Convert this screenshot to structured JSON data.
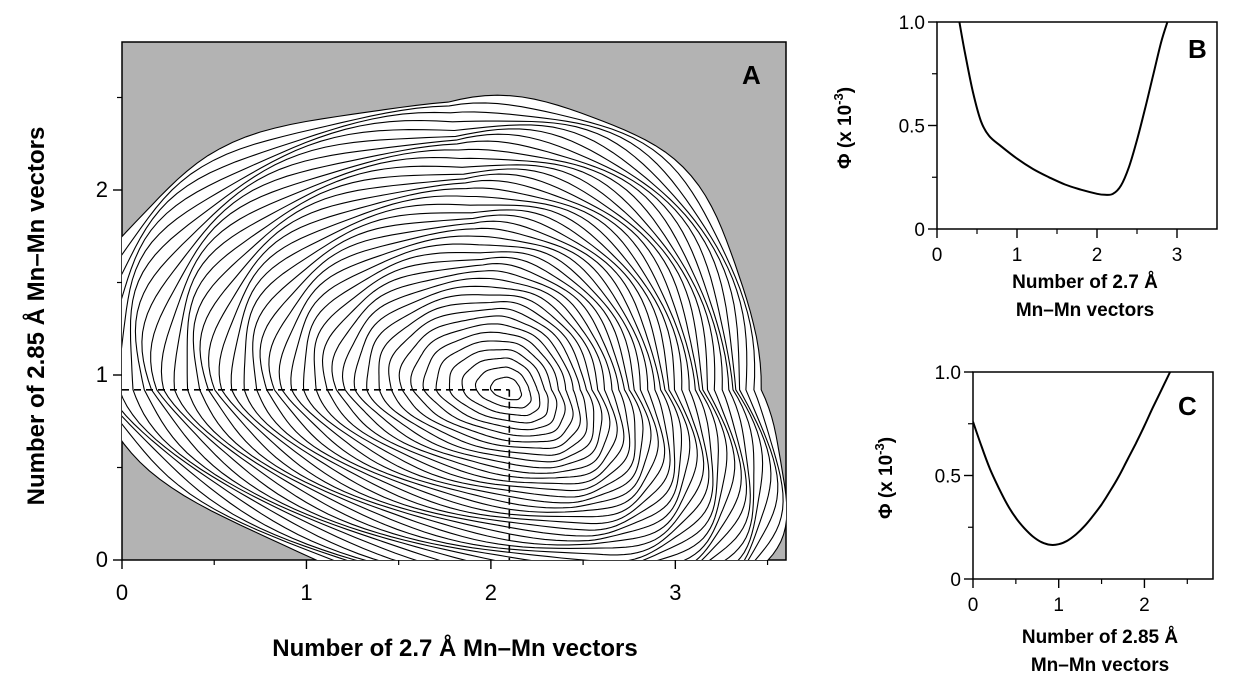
{
  "chart_data": [
    {
      "panel": "A",
      "type": "contour",
      "xlabel": "Number of 2.7 Å Mn–Mn vectors",
      "ylabel": "Number of 2.85 Å Mn–Mn vectors",
      "xlim": [
        0,
        3.6
      ],
      "ylim": [
        0,
        2.8
      ],
      "xticks": [
        "0",
        "1",
        "2",
        "3"
      ],
      "yticks": [
        "0",
        "1",
        "2"
      ],
      "background": "#b3b3b3",
      "minimum": {
        "x": 2.1,
        "y": 0.92
      },
      "contour_levels": 40,
      "reference_lines": {
        "x": 2.1,
        "y": 0.92,
        "style": "dashed"
      }
    },
    {
      "panel": "B",
      "type": "line",
      "xlabel": "Number of 2.7 Å Mn–Mn vectors",
      "ylabel": "Φ (x 10-3)",
      "xlim": [
        0,
        3.5
      ],
      "ylim": [
        0,
        1.0
      ],
      "xticks": [
        "0",
        "1",
        "2",
        "3"
      ],
      "yticks": [
        "0",
        "0.5",
        "1.0"
      ],
      "x": [
        0.28,
        0.35,
        0.45,
        0.55,
        0.65,
        0.8,
        1.0,
        1.2,
        1.4,
        1.6,
        1.8,
        2.0,
        2.1,
        2.2,
        2.3,
        2.4,
        2.5,
        2.6,
        2.7,
        2.8,
        2.88
      ],
      "y": [
        1.0,
        0.85,
        0.66,
        0.52,
        0.45,
        0.4,
        0.34,
        0.29,
        0.25,
        0.215,
        0.19,
        0.17,
        0.165,
        0.17,
        0.21,
        0.3,
        0.43,
        0.58,
        0.74,
        0.9,
        1.0
      ]
    },
    {
      "panel": "C",
      "type": "line",
      "xlabel": "Number of 2.85 Å Mn–Mn vectors",
      "ylabel": "Φ (x 10-3)",
      "xlim": [
        0,
        2.8
      ],
      "ylim": [
        0,
        1.0
      ],
      "xticks": [
        "0",
        "1",
        "2"
      ],
      "yticks": [
        "0",
        "0.5",
        "1.0"
      ],
      "x": [
        0.0,
        0.1,
        0.2,
        0.3,
        0.4,
        0.5,
        0.6,
        0.7,
        0.8,
        0.9,
        1.0,
        1.1,
        1.2,
        1.3,
        1.4,
        1.5,
        1.6,
        1.7,
        1.8,
        1.9,
        2.0,
        2.1,
        2.2,
        2.3
      ],
      "y": [
        0.76,
        0.64,
        0.53,
        0.44,
        0.36,
        0.295,
        0.245,
        0.205,
        0.178,
        0.165,
        0.168,
        0.185,
        0.215,
        0.255,
        0.305,
        0.36,
        0.425,
        0.495,
        0.575,
        0.655,
        0.74,
        0.83,
        0.915,
        1.0
      ]
    }
  ],
  "panels": {
    "A": {
      "letter": "A",
      "xlabel": "Number of 2.7 Å Mn–Mn vectors",
      "ylabel": "Number of 2.85 Å Mn–Mn vectors"
    },
    "B": {
      "letter": "B",
      "xlabel_line1": "Number of 2.7 Å",
      "xlabel_line2": "Mn–Mn vectors",
      "ylabel_main": "Φ (x 10",
      "ylabel_sup": "-3",
      "ylabel_close": ")"
    },
    "C": {
      "letter": "C",
      "xlabel_line1": "Number of 2.85 Å",
      "xlabel_line2": "Mn–Mn vectors",
      "ylabel_main": "Φ (x 10",
      "ylabel_sup": "-3",
      "ylabel_close": ")"
    }
  }
}
